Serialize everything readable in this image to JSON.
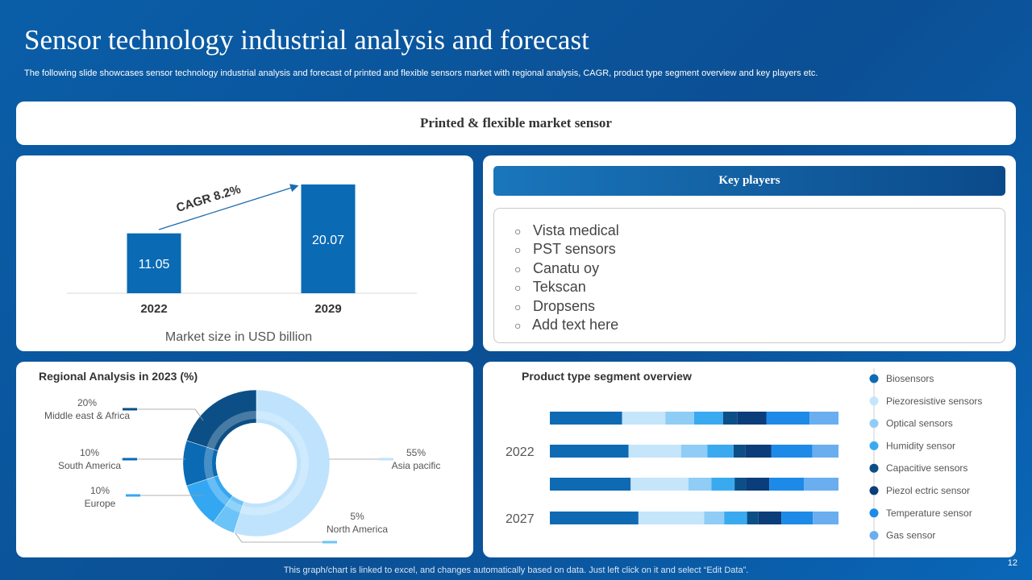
{
  "title": "Sensor technology industrial analysis and forecast",
  "subtitle": "The following slide showcases sensor technology industrial analysis and forecast of printed and flexible sensors market with regional analysis, CAGR, product type  segment overview and key players etc.",
  "banner": "Printed & flexible market sensor",
  "key_players": {
    "header": "Key players",
    "bullet": "○",
    "items": [
      "Vista medical",
      "PST sensors",
      "Canatu oy",
      "Tekscan",
      "Dropsens",
      "Add text here"
    ]
  },
  "footer_note": "This graph/chart is linked to excel,  and changes automatically based on data. Just left click on it and select “Edit Data”.",
  "page_number": "12",
  "colors": {
    "bar": "#0a6ab4",
    "segments": [
      "#0f6ab4",
      "#c5e5fb",
      "#8fcdf6",
      "#3aaaf0",
      "#0b4f86",
      "#0a3d7a",
      "#1d8ae8",
      "#6aaef0"
    ]
  },
  "chart_data": [
    {
      "type": "bar",
      "title": "Market size in USD billion",
      "categories": [
        "2022",
        "2029"
      ],
      "values": [
        11.05,
        20.07
      ],
      "value_labels": [
        "11.05",
        "20.07"
      ],
      "annotation": "CAGR 8.2%",
      "ylim": [
        0,
        20.07
      ]
    },
    {
      "type": "pie",
      "title": "Regional Analysis in 2023 (%)",
      "slices": [
        {
          "label": "Asia pacific",
          "pct_label": "55%",
          "value": 55,
          "color": "#bfe3fc"
        },
        {
          "label": "North America",
          "pct_label": "5%",
          "value": 5,
          "color": "#6cc3f7"
        },
        {
          "label": "Europe",
          "pct_label": "10%",
          "value": 10,
          "color": "#34a7f2"
        },
        {
          "label": "South America",
          "pct_label": "10%",
          "value": 10,
          "color": "#0a6ab4"
        },
        {
          "label": "Middle east & Africa",
          "pct_label": "20%",
          "value": 20,
          "color": "#0b4f86"
        }
      ]
    },
    {
      "type": "bar",
      "stacked": true,
      "orientation": "horizontal",
      "title": "Product  type segment overview",
      "row_labels": [
        "",
        "2022",
        "",
        "2027"
      ],
      "series": [
        {
          "name": "Biosensors",
          "values": [
            25,
            27,
            28,
            31
          ]
        },
        {
          "name": "Piezoresistive sensors",
          "values": [
            15,
            18,
            20,
            23
          ]
        },
        {
          "name": "Optical sensors",
          "values": [
            10,
            9,
            8,
            7
          ]
        },
        {
          "name": "Humidity sensor",
          "values": [
            10,
            9,
            8,
            8
          ]
        },
        {
          "name": "Capacitive  sensors",
          "values": [
            5,
            4,
            4,
            4
          ]
        },
        {
          "name": "Piezol ectric sensor",
          "values": [
            10,
            9,
            8,
            8
          ]
        },
        {
          "name": "Temperature  sensor",
          "values": [
            15,
            14,
            12,
            11
          ]
        },
        {
          "name": "Gas sensor",
          "values": [
            10,
            9,
            12,
            9
          ]
        }
      ]
    }
  ]
}
